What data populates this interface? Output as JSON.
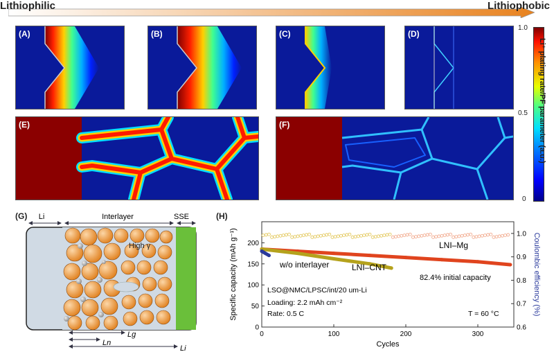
{
  "gradient_bar": {
    "left_label": "Lithiophilic",
    "right_label": "Lithiophobic"
  },
  "panels": {
    "a": "(A)",
    "b": "(B)",
    "c": "(C)",
    "d": "(D)",
    "e": "(E)",
    "f": "(F)",
    "g": "(G)",
    "h": "(H)"
  },
  "colorbar": {
    "title": "Li⁺ plating rate/PF parameter (a.u.)",
    "ticks": [
      "1.0",
      "0.5",
      "0"
    ]
  },
  "schematic": {
    "top_labels": [
      "Li",
      "Interlayer",
      "SSE"
    ],
    "high_gamma": "High γ",
    "lengths": [
      "Lg",
      "Ln",
      "Li"
    ]
  },
  "chart_data": {
    "type": "scatter",
    "xlabel": "Cycles",
    "ylabel": "Specific capacity (mAh g⁻¹)",
    "y2label": "Coulombic efficiency (%)",
    "xlim": [
      0,
      350
    ],
    "ylim": [
      0,
      250
    ],
    "y2lim": [
      0.6,
      1.05
    ],
    "xticks": [
      "0",
      "100",
      "200",
      "300"
    ],
    "yticks": [
      "0",
      "50",
      "100",
      "150",
      "200"
    ],
    "y2ticks": [
      "0.6",
      "0.7",
      "0.8",
      "0.9",
      "1.0"
    ],
    "series": [
      {
        "name": "LNI–Mg",
        "x": [
          0,
          50,
          100,
          150,
          200,
          250,
          300,
          345
        ],
        "y": [
          185,
          180,
          175,
          170,
          165,
          160,
          155,
          148
        ]
      },
      {
        "name": "LNI–CNT",
        "x": [
          0,
          50,
          100,
          150,
          180
        ],
        "y": [
          185,
          175,
          162,
          150,
          140
        ]
      },
      {
        "name": "w/o interlayer",
        "x": [
          0,
          5,
          10
        ],
        "y": [
          180,
          175,
          170
        ]
      }
    ],
    "annotations": [
      "w/o interlayer",
      "LNI–CNT",
      "LNI–Mg",
      "82.4% initial capacity",
      "LSO@NMC/LPSC/int/20 um-Li",
      "Loading: 2.2 mAh cm⁻²",
      "Rate: 0.5 C",
      "T = 60 °C"
    ]
  }
}
